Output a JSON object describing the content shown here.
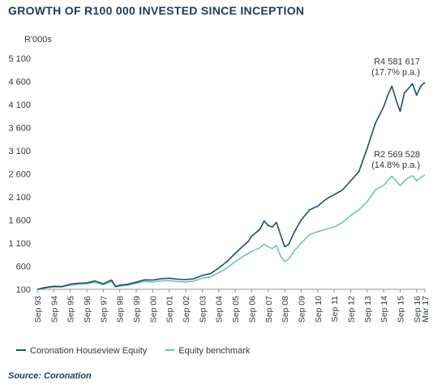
{
  "chart_data": {
    "type": "line",
    "title": "GROWTH OF R100 000 INVESTED SINCE INCEPTION",
    "unit_label": "R'000s",
    "ylim": [
      100,
      5100
    ],
    "y_ticks": [
      100,
      600,
      1100,
      1600,
      2100,
      2600,
      3100,
      3600,
      4100,
      4600,
      5100
    ],
    "y_tick_labels": [
      "100",
      "600",
      "1 100",
      "1 600",
      "2 100",
      "2 600",
      "3 100",
      "3 600",
      "4 100",
      "4 600",
      "5 100"
    ],
    "grid": false,
    "legend_position": "bottom",
    "x_tick_labels": [
      "Sep 93",
      "Sep 94",
      "Sep 95",
      "Sep 96",
      "Sep 97",
      "Sep 98",
      "Sep 99",
      "Sep 00",
      "Sep 01",
      "Sep 02",
      "Sep 03",
      "Sep 04",
      "Sep 05",
      "Sep 06",
      "Sep 07",
      "Sep 08",
      "Sep 09",
      "Sep 10",
      "Sep 11",
      "Sep 12",
      "Sep 13",
      "Sep 14",
      "Sep 15",
      "Sep 16",
      "Mar 17"
    ],
    "x_positions": [
      1993.75,
      1994.75,
      1995.75,
      1996.75,
      1997.75,
      1998.75,
      1999.75,
      2000.75,
      2001.75,
      2002.75,
      2003.75,
      2004.75,
      2005.75,
      2006.75,
      2007.75,
      2008.75,
      2009.75,
      2010.75,
      2011.75,
      2012.75,
      2013.75,
      2014.75,
      2015.75,
      2016.75,
      2017.25
    ],
    "xlim": [
      1993.75,
      2017.25
    ],
    "series": [
      {
        "name": "Coronation Houseview Equity",
        "color": "#1f4e6e",
        "x": [
          1993.75,
          1994.25,
          1994.75,
          1995.25,
          1995.75,
          1996.25,
          1996.75,
          1997.25,
          1997.75,
          1998.25,
          1998.5,
          1998.75,
          1999.25,
          1999.75,
          2000.25,
          2000.75,
          2001.25,
          2001.75,
          2002.25,
          2002.75,
          2003.25,
          2003.75,
          2004.25,
          2004.75,
          2005.25,
          2005.75,
          2006.25,
          2006.5,
          2006.75,
          2007.25,
          2007.5,
          2007.75,
          2008.0,
          2008.25,
          2008.5,
          2008.75,
          2009.0,
          2009.25,
          2009.5,
          2009.75,
          2010.25,
          2010.75,
          2011.25,
          2011.75,
          2012.25,
          2012.75,
          2013.25,
          2013.75,
          2014.25,
          2014.75,
          2015.0,
          2015.25,
          2015.5,
          2015.75,
          2016.0,
          2016.25,
          2016.5,
          2016.75,
          2017.0,
          2017.25
        ],
        "values": [
          100,
          140,
          165,
          160,
          210,
          230,
          240,
          280,
          220,
          300,
          160,
          190,
          210,
          255,
          305,
          300,
          330,
          340,
          320,
          310,
          330,
          400,
          440,
          560,
          700,
          880,
          1050,
          1120,
          1250,
          1400,
          1580,
          1480,
          1450,
          1550,
          1280,
          1020,
          1080,
          1280,
          1450,
          1600,
          1820,
          1900,
          2050,
          2150,
          2250,
          2450,
          2650,
          3150,
          3700,
          4050,
          4300,
          4500,
          4200,
          3950,
          4350,
          4450,
          4550,
          4300,
          4500,
          4580
        ]
      },
      {
        "name": "Equity benchmark",
        "color": "#6fc6ad",
        "x": [
          1993.75,
          1994.25,
          1994.75,
          1995.25,
          1995.75,
          1996.25,
          1996.75,
          1997.25,
          1997.75,
          1998.25,
          1998.5,
          1998.75,
          1999.25,
          1999.75,
          2000.25,
          2000.75,
          2001.25,
          2001.75,
          2002.25,
          2002.75,
          2003.25,
          2003.75,
          2004.25,
          2004.75,
          2005.25,
          2005.75,
          2006.25,
          2006.75,
          2007.25,
          2007.5,
          2007.75,
          2008.0,
          2008.25,
          2008.5,
          2008.75,
          2009.0,
          2009.25,
          2009.5,
          2009.75,
          2010.25,
          2010.75,
          2011.25,
          2011.75,
          2012.25,
          2012.75,
          2013.25,
          2013.75,
          2014.25,
          2014.75,
          2015.0,
          2015.25,
          2015.5,
          2015.75,
          2016.0,
          2016.25,
          2016.5,
          2016.75,
          2017.0,
          2017.25
        ],
        "values": [
          100,
          130,
          150,
          150,
          190,
          210,
          220,
          250,
          200,
          270,
          150,
          170,
          190,
          230,
          270,
          260,
          280,
          290,
          270,
          260,
          280,
          340,
          370,
          460,
          560,
          700,
          820,
          920,
          1000,
          1080,
          1020,
          980,
          1050,
          820,
          700,
          760,
          900,
          1000,
          1100,
          1280,
          1350,
          1400,
          1450,
          1550,
          1700,
          1820,
          2000,
          2250,
          2350,
          2450,
          2550,
          2450,
          2350,
          2450,
          2520,
          2560,
          2450,
          2520,
          2570
        ]
      }
    ],
    "annotations": [
      {
        "series": 0,
        "lines": [
          "R4 581 617",
          "(17.7% p.a.)"
        ]
      },
      {
        "series": 1,
        "lines": [
          "R2 569 528",
          "(14.8% p.a.)"
        ]
      }
    ]
  },
  "source": "Source: Coronation"
}
